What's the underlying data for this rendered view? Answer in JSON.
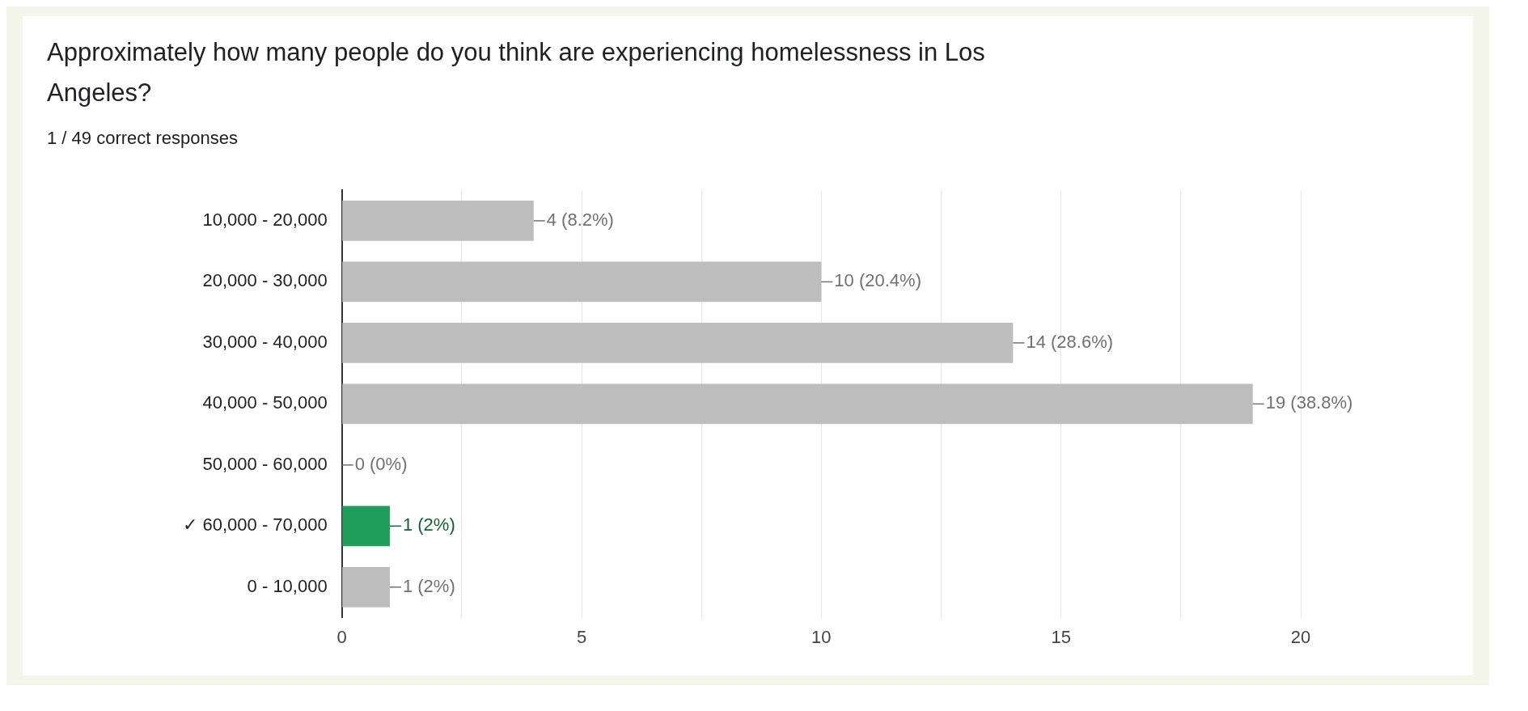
{
  "chart_data": {
    "type": "bar",
    "orientation": "horizontal",
    "title": "Approximately how many people do you think are experiencing homelessness in Los Angeles?",
    "subtitle": "1 / 49 correct responses",
    "categories": [
      "10,000 - 20,000",
      "20,000 - 30,000",
      "30,000 - 40,000",
      "40,000 - 50,000",
      "50,000 - 60,000",
      "✓ 60,000 - 70,000",
      "0 - 10,000"
    ],
    "values": [
      4,
      10,
      14,
      19,
      0,
      1,
      1
    ],
    "colors": [
      "#bdbdbd",
      "#bdbdbd",
      "#bdbdbd",
      "#bdbdbd",
      "#bdbdbd",
      "#1e9e5a",
      "#bdbdbd"
    ],
    "value_labels": [
      "4 (8.2%)",
      "10 (20.4%)",
      "14 (28.6%)",
      "19 (38.8%)",
      "0 (0%)",
      "1 (2%)",
      "1 (2%)"
    ],
    "xlim": [
      0,
      20
    ],
    "xticks": [
      0,
      {
        "value": 2.5,
        "label": null
      },
      5,
      {
        "value": 7.5,
        "label": null
      },
      10,
      {
        "value": 12.5,
        "label": null
      },
      15,
      {
        "value": 17.5,
        "label": null
      },
      20
    ],
    "grid": "x",
    "legend": false
  }
}
